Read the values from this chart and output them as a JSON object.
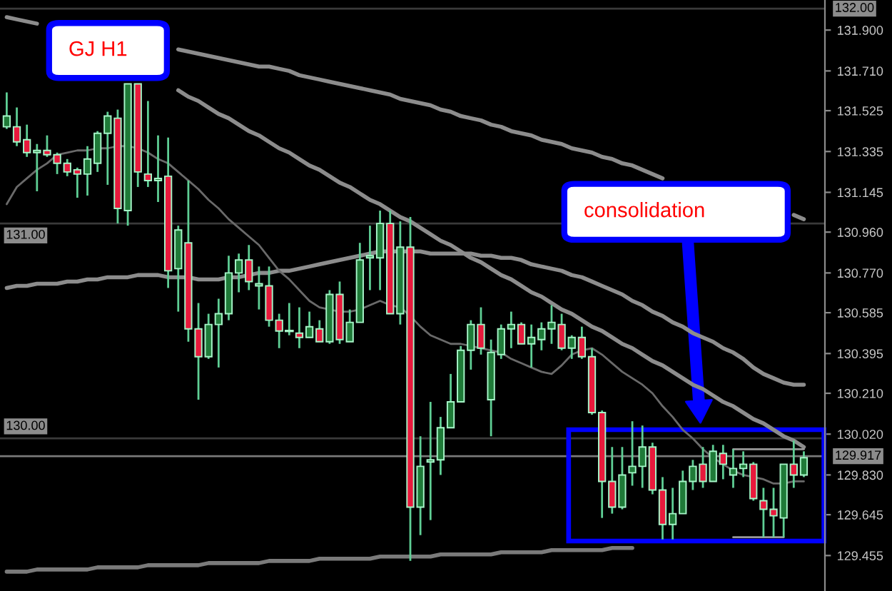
{
  "chart_data": {
    "type": "candlestick",
    "categories": [
      null,
      null,
      null,
      null,
      null,
      null,
      null,
      null,
      null,
      null,
      null,
      null,
      null,
      null,
      null,
      null,
      null,
      null,
      null,
      null,
      null,
      null,
      null,
      null,
      null,
      null,
      null,
      null,
      null,
      null,
      null,
      null,
      null,
      null,
      null,
      null,
      null,
      null,
      null,
      null,
      null,
      null,
      null,
      null,
      null,
      null,
      null,
      null,
      null,
      null,
      null,
      null,
      null,
      null,
      null,
      null,
      null,
      null,
      null,
      null,
      null,
      null,
      null,
      null,
      null,
      null,
      null,
      null,
      null,
      null,
      null,
      null,
      null,
      null,
      null,
      null,
      null,
      null,
      null,
      null
    ],
    "ohlc": [
      [
        131.45,
        131.61,
        131.44,
        131.5
      ],
      [
        131.45,
        131.54,
        131.36,
        131.38
      ],
      [
        131.39,
        131.46,
        131.31,
        131.33
      ],
      [
        131.33,
        131.37,
        131.15,
        131.34
      ],
      [
        131.34,
        131.41,
        131.31,
        131.32
      ],
      [
        131.32,
        131.33,
        131.23,
        131.28
      ],
      [
        131.28,
        131.3,
        131.22,
        131.24
      ],
      [
        131.25,
        131.26,
        131.12,
        131.23
      ],
      [
        131.23,
        131.36,
        131.13,
        131.3
      ],
      [
        131.28,
        131.43,
        131.24,
        131.42
      ],
      [
        131.42,
        131.52,
        131.18,
        131.5
      ],
      [
        131.49,
        131.53,
        131.0,
        131.07
      ],
      [
        131.06,
        131.65,
        130.99,
        131.65
      ],
      [
        131.65,
        131.65,
        131.17,
        131.24
      ],
      [
        131.23,
        131.57,
        131.17,
        131.2
      ],
      [
        131.2,
        131.41,
        131.1,
        131.21
      ],
      [
        131.22,
        131.4,
        130.7,
        130.78
      ],
      [
        130.79,
        130.99,
        130.59,
        130.97
      ],
      [
        130.91,
        131.2,
        130.45,
        130.51
      ],
      [
        130.51,
        130.63,
        130.18,
        130.38
      ],
      [
        130.38,
        130.58,
        130.37,
        130.53
      ],
      [
        130.53,
        130.65,
        130.33,
        130.58
      ],
      [
        130.58,
        130.85,
        130.55,
        130.77
      ],
      [
        130.77,
        130.86,
        130.68,
        130.83
      ],
      [
        130.83,
        130.9,
        130.69,
        130.73
      ],
      [
        130.71,
        130.8,
        130.6,
        130.72
      ],
      [
        130.71,
        130.8,
        130.52,
        130.55
      ],
      [
        130.55,
        130.58,
        130.42,
        130.5
      ],
      [
        130.5,
        130.63,
        130.48,
        130.5
      ],
      [
        130.49,
        130.61,
        130.42,
        130.47
      ],
      [
        130.47,
        130.59,
        130.47,
        130.52
      ],
      [
        130.51,
        130.55,
        130.45,
        130.45
      ],
      [
        130.45,
        130.69,
        130.44,
        130.67
      ],
      [
        130.67,
        130.73,
        130.44,
        130.46
      ],
      [
        130.45,
        130.6,
        130.45,
        130.54
      ],
      [
        130.54,
        130.91,
        130.54,
        130.83
      ],
      [
        130.84,
        130.99,
        130.69,
        130.85
      ],
      [
        130.84,
        131.06,
        130.69,
        131.0
      ],
      [
        131.0,
        131.06,
        130.58,
        130.58
      ],
      [
        130.58,
        131.01,
        130.53,
        130.89
      ],
      [
        130.89,
        131.03,
        129.43,
        129.68
      ],
      [
        129.68,
        130.01,
        129.55,
        129.87
      ],
      [
        129.89,
        130.17,
        129.62,
        129.9
      ],
      [
        129.9,
        130.1,
        129.83,
        130.05
      ],
      [
        130.05,
        130.3,
        130.05,
        130.17
      ],
      [
        130.17,
        130.43,
        130.17,
        130.41
      ],
      [
        130.41,
        130.55,
        130.32,
        130.53
      ],
      [
        130.53,
        130.61,
        130.39,
        130.42
      ],
      [
        130.18,
        130.46,
        130.01,
        130.4
      ],
      [
        130.39,
        130.53,
        130.37,
        130.51
      ],
      [
        130.51,
        130.59,
        130.42,
        130.53
      ],
      [
        130.53,
        130.54,
        130.44,
        130.44
      ],
      [
        130.44,
        130.53,
        130.33,
        130.47
      ],
      [
        130.46,
        130.54,
        130.41,
        130.51
      ],
      [
        130.51,
        130.62,
        130.44,
        130.54
      ],
      [
        130.53,
        130.58,
        130.41,
        130.42
      ],
      [
        130.42,
        130.48,
        130.37,
        130.47
      ],
      [
        130.47,
        130.52,
        130.37,
        130.38
      ],
      [
        130.38,
        130.42,
        130.11,
        130.12
      ],
      [
        130.12,
        130.13,
        129.63,
        129.8
      ],
      [
        129.8,
        129.96,
        129.65,
        129.68
      ],
      [
        129.68,
        129.96,
        129.67,
        129.83
      ],
      [
        129.84,
        130.08,
        129.78,
        129.87
      ],
      [
        129.87,
        130.06,
        129.77,
        129.96
      ],
      [
        129.96,
        129.98,
        129.74,
        129.76
      ],
      [
        129.76,
        129.82,
        129.53,
        129.6
      ],
      [
        129.6,
        129.77,
        129.53,
        129.65
      ],
      [
        129.65,
        129.85,
        129.65,
        129.8
      ],
      [
        129.8,
        129.9,
        129.76,
        129.87
      ],
      [
        129.88,
        129.96,
        129.77,
        129.8
      ],
      [
        129.8,
        129.97,
        129.8,
        129.94
      ],
      [
        129.93,
        129.97,
        129.81,
        129.88
      ],
      [
        129.83,
        129.95,
        129.77,
        129.86
      ],
      [
        129.86,
        129.94,
        129.82,
        129.88
      ],
      [
        129.88,
        129.89,
        129.71,
        129.72
      ],
      [
        129.71,
        129.77,
        129.54,
        129.67
      ],
      [
        129.67,
        129.77,
        129.54,
        129.64
      ],
      [
        129.63,
        129.88,
        129.54,
        129.88
      ],
      [
        129.88,
        129.99,
        129.77,
        129.83
      ],
      [
        129.83,
        129.94,
        129.82,
        129.91
      ]
    ],
    "colors": [
      "#1f7a38",
      "#e8193c",
      "#e8193c",
      "#1f7a38",
      "#e8193c",
      "#e8193c",
      "#e8193c",
      "#e8193c",
      "#1f7a38",
      "#1f7a38",
      "#1f7a38",
      "#e8193c",
      "#1f7a38",
      "#e8193c",
      "#e8193c",
      "#1f7a38",
      "#e8193c",
      "#1f7a38",
      "#e8193c",
      "#e8193c",
      "#1f7a38",
      "#1f7a38",
      "#1f7a38",
      "#1f7a38",
      "#e8193c",
      "#1f7a38",
      "#e8193c",
      "#e8193c",
      "#a6f5c8",
      "#e8193c",
      "#1f7a38",
      "#e8193c",
      "#1f7a38",
      "#e8193c",
      "#1f7a38",
      "#1f7a38",
      "#1f7a38",
      "#1f7a38",
      "#e8193c",
      "#1f7a38",
      "#e8193c",
      "#1f7a38",
      "#1f7a38",
      "#1f7a38",
      "#1f7a38",
      "#1f7a38",
      "#1f7a38",
      "#e8193c",
      "#1f7a38",
      "#1f7a38",
      "#1f7a38",
      "#e8193c",
      "#1f7a38",
      "#1f7a38",
      "#1f7a38",
      "#e8193c",
      "#1f7a38",
      "#e8193c",
      "#e8193c",
      "#e8193c",
      "#e8193c",
      "#1f7a38",
      "#1f7a38",
      "#1f7a38",
      "#e8193c",
      "#e8193c",
      "#1f7a38",
      "#1f7a38",
      "#1f7a38",
      "#e8193c",
      "#1f7a38",
      "#e8193c",
      "#1f7a38",
      "#1f7a38",
      "#e8193c",
      "#e8193c",
      "#e8193c",
      "#1f7a38",
      "#e8193c",
      "#1f7a38"
    ],
    "series": [
      {
        "type": "line",
        "color": "#8c8c8c",
        "values": [
          131.96,
          131.95,
          131.94,
          131.93,
          null,
          null,
          null,
          null,
          null,
          null,
          null,
          null,
          null,
          null,
          null,
          null,
          null,
          131.81,
          131.8,
          131.79,
          131.78,
          131.77,
          131.76,
          131.75,
          131.74,
          131.73,
          131.73,
          131.72,
          131.71,
          131.69,
          131.68,
          131.67,
          131.66,
          131.65,
          131.64,
          131.63,
          131.62,
          131.61,
          131.6,
          131.58,
          131.57,
          131.56,
          131.55,
          131.53,
          131.52,
          131.5,
          131.49,
          131.48,
          131.46,
          131.45,
          131.43,
          131.42,
          131.41,
          131.39,
          131.38,
          131.37,
          131.35,
          131.34,
          131.33,
          131.31,
          131.3,
          131.28,
          131.27,
          131.25,
          131.23,
          131.21,
          null,
          null,
          null,
          null,
          null,
          null,
          null,
          null,
          null,
          null,
          null,
          null,
          131.04,
          131.02
        ]
      },
      {
        "type": "line",
        "color": "#8c8c8c",
        "values": [
          130.7,
          130.71,
          130.71,
          130.72,
          130.72,
          130.72,
          130.73,
          130.73,
          130.74,
          130.74,
          130.75,
          130.75,
          130.75,
          130.76,
          130.76,
          130.76,
          130.75,
          130.75,
          130.75,
          130.74,
          130.74,
          130.74,
          130.75,
          130.75,
          130.76,
          130.77,
          130.77,
          130.78,
          130.78,
          130.79,
          130.8,
          130.81,
          130.82,
          130.83,
          130.84,
          130.85,
          130.86,
          130.87,
          130.87,
          130.87,
          130.87,
          130.87,
          130.86,
          130.86,
          130.86,
          130.86,
          130.86,
          130.85,
          130.85,
          130.84,
          130.84,
          130.83,
          130.81,
          130.8,
          130.79,
          130.78,
          130.76,
          130.75,
          130.73,
          130.71,
          130.69,
          130.67,
          130.64,
          130.62,
          130.59,
          130.57,
          130.54,
          130.52,
          130.49,
          130.47,
          130.45,
          130.42,
          130.4,
          130.37,
          130.33,
          130.3,
          130.28,
          130.26,
          130.25,
          130.25
        ]
      },
      {
        "type": "line",
        "color": "#6a6a6a",
        "values": [
          131.09,
          131.17,
          131.21,
          131.25,
          131.28,
          131.32,
          131.33,
          131.34,
          131.34,
          131.35,
          131.35,
          131.36,
          131.36,
          131.35,
          131.33,
          131.3,
          131.28,
          131.24,
          131.2,
          131.16,
          131.11,
          131.07,
          131.02,
          130.98,
          130.94,
          130.9,
          130.84,
          130.78,
          130.74,
          130.69,
          130.64,
          130.61,
          130.6,
          130.59,
          130.59,
          130.6,
          130.62,
          130.64,
          130.62,
          130.61,
          130.57,
          130.52,
          130.48,
          130.46,
          130.44,
          130.44,
          130.43,
          130.42,
          130.41,
          130.4,
          130.37,
          130.35,
          130.33,
          130.31,
          130.3,
          130.34,
          130.39,
          130.41,
          130.42,
          130.39,
          130.35,
          130.31,
          130.28,
          130.25,
          130.21,
          130.15,
          130.1,
          130.04,
          130.0,
          129.95,
          129.91,
          129.88,
          129.85,
          129.83,
          129.82,
          129.81,
          129.79,
          129.79,
          129.8,
          129.8
        ]
      },
      {
        "type": "line",
        "color": "#8c8c8c",
        "values": [
          null,
          null,
          null,
          null,
          null,
          null,
          null,
          null,
          null,
          null,
          null,
          null,
          null,
          null,
          null,
          null,
          null,
          131.62,
          131.59,
          131.57,
          131.54,
          131.51,
          131.49,
          131.46,
          131.43,
          131.41,
          131.38,
          131.35,
          131.33,
          131.3,
          131.27,
          131.25,
          131.22,
          131.19,
          131.17,
          131.14,
          131.11,
          131.09,
          131.06,
          131.03,
          131.01,
          130.98,
          130.95,
          130.92,
          130.9,
          130.87,
          130.84,
          130.82,
          130.79,
          130.76,
          130.74,
          130.71,
          130.68,
          130.66,
          130.63,
          130.6,
          130.58,
          130.55,
          130.52,
          130.5,
          130.47,
          130.44,
          130.42,
          130.39,
          130.36,
          130.34,
          130.31,
          130.28,
          130.25,
          130.23,
          130.2,
          130.17,
          130.15,
          130.12,
          130.09,
          130.07,
          130.04,
          130.01,
          129.99,
          129.96
        ]
      },
      {
        "type": "line",
        "color": "#7a7a7a",
        "values": [
          129.38,
          129.38,
          129.38,
          129.39,
          129.39,
          129.39,
          129.39,
          129.39,
          129.39,
          129.4,
          129.4,
          129.4,
          129.4,
          129.4,
          129.41,
          129.41,
          129.41,
          129.41,
          129.41,
          129.41,
          129.42,
          129.42,
          129.42,
          129.42,
          129.42,
          129.42,
          129.43,
          129.43,
          129.43,
          129.43,
          129.43,
          129.44,
          129.44,
          129.44,
          129.44,
          129.44,
          129.44,
          129.45,
          129.45,
          129.45,
          129.45,
          129.45,
          129.45,
          129.46,
          129.46,
          129.46,
          129.46,
          129.46,
          129.46,
          129.47,
          129.47,
          129.47,
          129.47,
          129.47,
          129.48,
          129.48,
          129.48,
          129.48,
          129.48,
          129.48,
          129.49,
          129.49,
          129.49,
          null,
          null,
          null,
          null,
          null,
          null,
          null,
          null,
          null,
          null,
          null,
          null,
          null,
          null,
          null,
          null,
          null
        ]
      },
      {
        "type": "line",
        "color": "#9a9a9a",
        "values": [
          null,
          null,
          null,
          null,
          null,
          null,
          null,
          null,
          null,
          null,
          null,
          null,
          null,
          null,
          null,
          null,
          null,
          null,
          null,
          null,
          null,
          null,
          null,
          null,
          null,
          null,
          null,
          null,
          null,
          null,
          null,
          null,
          null,
          null,
          null,
          null,
          null,
          null,
          null,
          null,
          null,
          null,
          null,
          null,
          null,
          null,
          null,
          null,
          null,
          null,
          null,
          null,
          null,
          null,
          null,
          null,
          null,
          null,
          null,
          null,
          null,
          null,
          null,
          null,
          null,
          null,
          null,
          null,
          null,
          null,
          null,
          null,
          129.95,
          129.95,
          129.95,
          129.95,
          129.95,
          129.95,
          129.95,
          129.95
        ]
      },
      {
        "type": "line",
        "color": "#9a9a9a",
        "values": [
          null,
          null,
          null,
          null,
          null,
          null,
          null,
          null,
          null,
          null,
          null,
          null,
          null,
          null,
          null,
          null,
          null,
          null,
          null,
          null,
          null,
          null,
          null,
          null,
          null,
          null,
          null,
          null,
          null,
          null,
          null,
          null,
          null,
          null,
          null,
          null,
          null,
          null,
          null,
          null,
          null,
          null,
          null,
          null,
          null,
          null,
          null,
          null,
          null,
          null,
          null,
          null,
          null,
          null,
          null,
          null,
          null,
          null,
          null,
          null,
          null,
          null,
          null,
          null,
          null,
          null,
          null,
          null,
          null,
          null,
          null,
          null,
          129.54,
          129.54,
          129.54,
          129.54,
          129.54,
          129.54,
          null,
          null
        ]
      }
    ],
    "ylim": [
      129.29,
      132.04
    ],
    "yticks": [
      {
        "value": 131.9,
        "label": "131.900"
      },
      {
        "value": 131.71,
        "label": "131.710"
      },
      131.525,
      131.335,
      131.145,
      {
        "value": 130.96,
        "label": "130.960"
      },
      {
        "value": 130.77,
        "label": "130.770"
      },
      130.585,
      130.395,
      {
        "value": 130.21,
        "label": "130.210"
      },
      {
        "value": 130.02,
        "label": "130.020"
      },
      {
        "value": 129.83,
        "label": "129.830"
      },
      129.645,
      129.455
    ],
    "tick_labels": "y",
    "ref_lines": [
      {
        "axis": "y",
        "value": 132.0,
        "label": "132.00",
        "color": "#3a3a3a"
      },
      {
        "axis": "y",
        "value": 131.0,
        "label": "131.00",
        "color": "#3a3a3a"
      },
      {
        "axis": "y",
        "value": 130.0,
        "label": "130.00",
        "color": "#3a3a3a"
      },
      {
        "axis": "y",
        "value": 129.917,
        "label": "129.917",
        "color": "#7a7a7a"
      }
    ],
    "annotations": [
      "GJ H1",
      "consolidation"
    ]
  }
}
